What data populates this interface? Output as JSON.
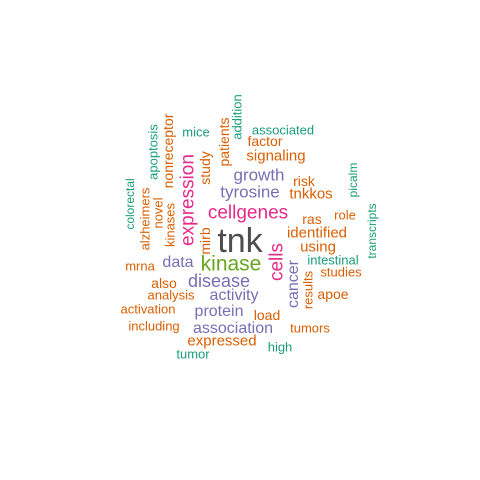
{
  "colors": {
    "gray": "#4d4d4d",
    "green": "#1b9e77",
    "orange": "#d95f02",
    "purple": "#7570b3",
    "pink": "#e7298a",
    "lime": "#66a61e"
  },
  "words": [
    {
      "id": "tnk",
      "text": "tnk",
      "color": "gray"
    },
    {
      "id": "kinase",
      "text": "kinase",
      "color": "lime"
    },
    {
      "id": "cellgenes",
      "text": "cellgenes",
      "color": "pink"
    },
    {
      "id": "expression",
      "text": "expression",
      "color": "pink"
    },
    {
      "id": "cells",
      "text": "cells",
      "color": "pink"
    },
    {
      "id": "disease",
      "text": "disease",
      "color": "purple"
    },
    {
      "id": "tyrosine",
      "text": "tyrosine",
      "color": "purple"
    },
    {
      "id": "growth",
      "text": "growth",
      "color": "purple"
    },
    {
      "id": "data",
      "text": "data",
      "color": "purple"
    },
    {
      "id": "activity",
      "text": "activity",
      "color": "purple"
    },
    {
      "id": "protein",
      "text": "protein",
      "color": "purple"
    },
    {
      "id": "association",
      "text": "association",
      "color": "purple"
    },
    {
      "id": "cancer",
      "text": "cancer",
      "color": "purple"
    },
    {
      "id": "signaling",
      "text": "signaling",
      "color": "orange"
    },
    {
      "id": "factor",
      "text": "factor",
      "color": "orange"
    },
    {
      "id": "patients",
      "text": "patients",
      "color": "orange"
    },
    {
      "id": "study",
      "text": "study",
      "color": "orange"
    },
    {
      "id": "nonreceptor",
      "text": "nonreceptor",
      "color": "orange"
    },
    {
      "id": "tnkkos",
      "text": "tnkkos",
      "color": "orange"
    },
    {
      "id": "risk",
      "text": "risk",
      "color": "orange"
    },
    {
      "id": "ras",
      "text": "ras",
      "color": "orange"
    },
    {
      "id": "role",
      "text": "role",
      "color": "orange"
    },
    {
      "id": "identified",
      "text": "identified",
      "color": "orange"
    },
    {
      "id": "using",
      "text": "using",
      "color": "orange"
    },
    {
      "id": "studies",
      "text": "studies",
      "color": "orange"
    },
    {
      "id": "apoe",
      "text": "apoe",
      "color": "orange"
    },
    {
      "id": "results",
      "text": "results",
      "color": "orange"
    },
    {
      "id": "load",
      "text": "load",
      "color": "orange"
    },
    {
      "id": "tumors",
      "text": "tumors",
      "color": "orange"
    },
    {
      "id": "expressed",
      "text": "expressed",
      "color": "orange"
    },
    {
      "id": "including",
      "text": "including",
      "color": "orange"
    },
    {
      "id": "activation",
      "text": "activation",
      "color": "orange"
    },
    {
      "id": "analysis",
      "text": "analysis",
      "color": "orange"
    },
    {
      "id": "also",
      "text": "also",
      "color": "orange"
    },
    {
      "id": "mrna",
      "text": "mrna",
      "color": "orange"
    },
    {
      "id": "alzheimers",
      "text": "alzheimers",
      "color": "orange"
    },
    {
      "id": "novel",
      "text": "novel",
      "color": "orange"
    },
    {
      "id": "kinases",
      "text": "kinases",
      "color": "orange"
    },
    {
      "id": "mirb",
      "text": "mirb",
      "color": "orange"
    },
    {
      "id": "mice",
      "text": "mice",
      "color": "green"
    },
    {
      "id": "addition",
      "text": "addition",
      "color": "green"
    },
    {
      "id": "associated",
      "text": "associated",
      "color": "green"
    },
    {
      "id": "apoptosis",
      "text": "apoptosis",
      "color": "green"
    },
    {
      "id": "colorectal",
      "text": "colorectal",
      "color": "green"
    },
    {
      "id": "picalm",
      "text": "picalm",
      "color": "green"
    },
    {
      "id": "transcripts",
      "text": "transcripts",
      "color": "green"
    },
    {
      "id": "intestinal",
      "text": "intestinal",
      "color": "green"
    },
    {
      "id": "high",
      "text": "high",
      "color": "green"
    },
    {
      "id": "tumor",
      "text": "tumor",
      "color": "green"
    }
  ]
}
